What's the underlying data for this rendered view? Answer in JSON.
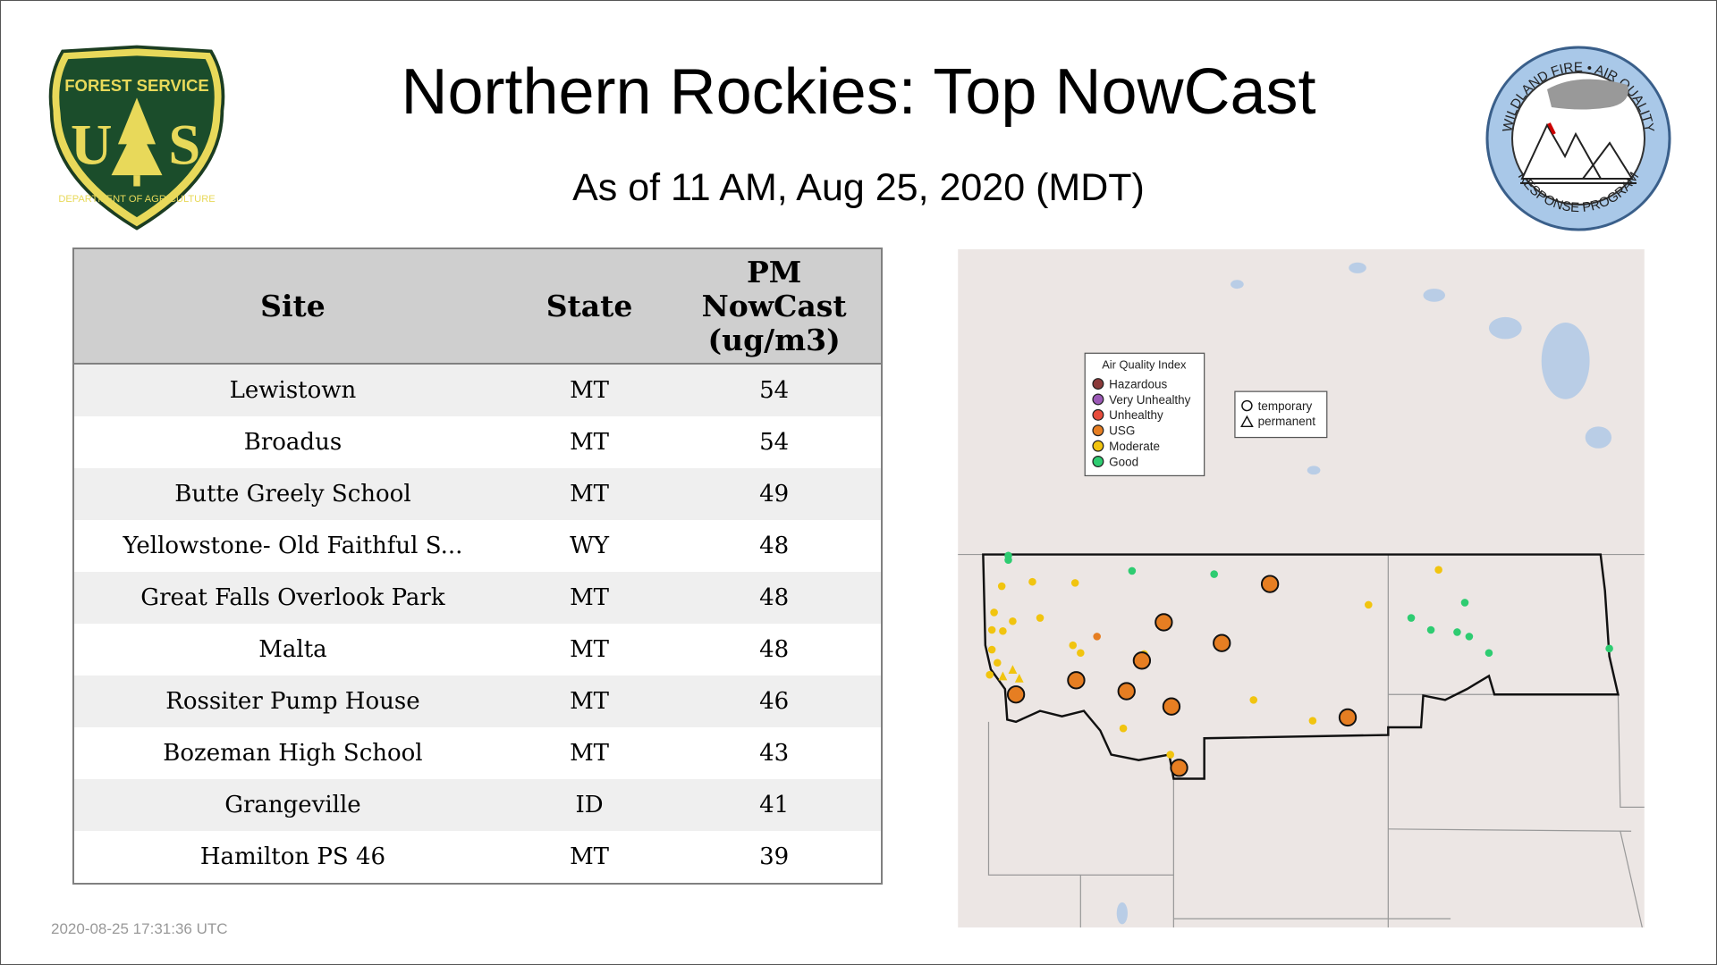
{
  "header": {
    "title": "Northern Rockies: Top NowCast",
    "subtitle": "As of 11 AM, Aug 25, 2020 (MDT)"
  },
  "logos": {
    "left": "FOREST SERVICE U S DEPARTMENT OF AGRICULTURE",
    "right": "WILDLAND FIRE • AIR QUALITY RESPONSE PROGRAM"
  },
  "table": {
    "columns": [
      "Site",
      "State",
      "PM NowCast (ug/m3)"
    ],
    "rows": [
      {
        "site": "Lewistown",
        "state": "MT",
        "value": "54"
      },
      {
        "site": "Broadus",
        "state": "MT",
        "value": "54"
      },
      {
        "site": "Butte Greely School",
        "state": "MT",
        "value": "49"
      },
      {
        "site": "Yellowstone- Old Faithful S...",
        "state": "WY",
        "value": "48"
      },
      {
        "site": "Great Falls Overlook Park",
        "state": "MT",
        "value": "48"
      },
      {
        "site": "Malta",
        "state": "MT",
        "value": "48"
      },
      {
        "site": "Rossiter Pump House",
        "state": "MT",
        "value": "46"
      },
      {
        "site": "Bozeman High School",
        "state": "MT",
        "value": "43"
      },
      {
        "site": "Grangeville",
        "state": "ID",
        "value": "41"
      },
      {
        "site": "Hamilton PS 46",
        "state": "MT",
        "value": "39"
      }
    ]
  },
  "map": {
    "legend_title": "Air Quality Index",
    "aqi": [
      {
        "label": "Hazardous",
        "color": "#8b3a3a"
      },
      {
        "label": "Very Unhealthy",
        "color": "#9b59b6"
      },
      {
        "label": "Unhealthy",
        "color": "#e74c3c"
      },
      {
        "label": "USG",
        "color": "#e67e22"
      },
      {
        "label": "Moderate",
        "color": "#f1c40f"
      },
      {
        "label": "Good",
        "color": "#2ecc71"
      }
    ],
    "shape_legend": [
      "temporary",
      "permanent"
    ]
  },
  "footer": {
    "timestamp": "2020-08-25 17:31:36 UTC"
  }
}
